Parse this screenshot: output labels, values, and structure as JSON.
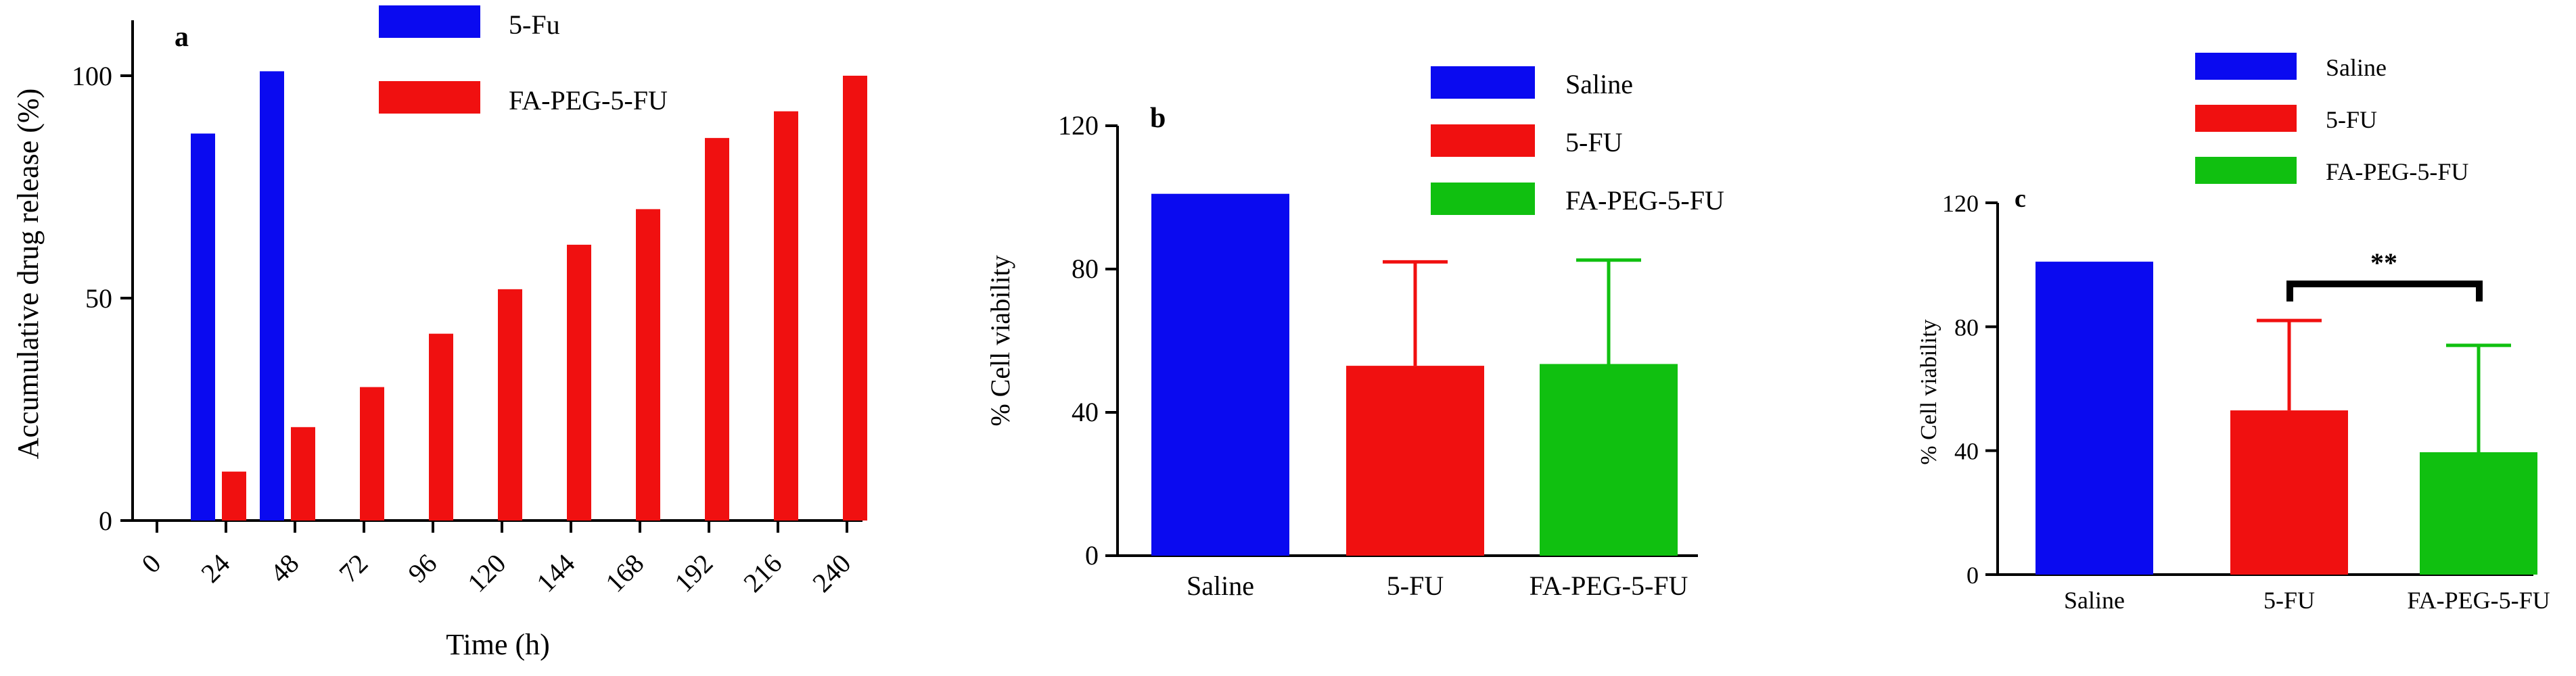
{
  "colors": {
    "blue": "#0a0af0",
    "red": "#f01010",
    "green": "#10c010",
    "axis": "#000000",
    "bracket": "#000000"
  },
  "chart_data": [
    {
      "panel": "a",
      "type": "bar",
      "title": "",
      "xlabel": "Time (h)",
      "ylabel": "Accumulative drug release (%)",
      "x_ticks": [
        "0",
        "24",
        "48",
        "72",
        "96",
        "120",
        "144",
        "168",
        "192",
        "216",
        "240"
      ],
      "y_ticks": [
        "0",
        "50",
        "100"
      ],
      "ylim": [
        0,
        110
      ],
      "legend_position": "top",
      "series": [
        {
          "name": "5-Fu",
          "color": "blue",
          "x": [
            24,
            48
          ],
          "values": [
            87,
            101
          ]
        },
        {
          "name": "FA-PEG-5-FU",
          "color": "red",
          "x": [
            24,
            48,
            72,
            96,
            120,
            144,
            168,
            192,
            216,
            240
          ],
          "values": [
            11,
            21,
            30,
            42,
            52,
            62,
            70,
            86,
            92,
            100
          ]
        }
      ]
    },
    {
      "panel": "b",
      "type": "bar",
      "title": "",
      "xlabel": "",
      "ylabel": "% Cell viability",
      "categories": [
        "Saline",
        "5-FU",
        "FA-PEG-5-FU"
      ],
      "values": [
        101,
        53,
        53.5
      ],
      "error_upper": [
        101,
        82,
        82.5
      ],
      "colors": [
        "blue",
        "red",
        "green"
      ],
      "y_ticks": [
        "0",
        "40",
        "80",
        "120"
      ],
      "ylim": [
        0,
        120
      ],
      "legend": [
        "Saline",
        "5-FU",
        "FA-PEG-5-FU"
      ],
      "legend_position": "top-right"
    },
    {
      "panel": "c",
      "type": "bar",
      "title": "",
      "xlabel": "",
      "ylabel": "% Cell viability",
      "categories": [
        "Saline",
        "5-FU",
        "FA-PEG-5-FU"
      ],
      "values": [
        101,
        53,
        39.5
      ],
      "error_upper": [
        101,
        82,
        74
      ],
      "colors": [
        "blue",
        "red",
        "green"
      ],
      "y_ticks": [
        "0",
        "40",
        "80",
        "120"
      ],
      "ylim": [
        0,
        120
      ],
      "legend": [
        "Saline",
        "5-FU",
        "FA-PEG-5-FU"
      ],
      "legend_position": "top",
      "annotation": "**"
    }
  ]
}
